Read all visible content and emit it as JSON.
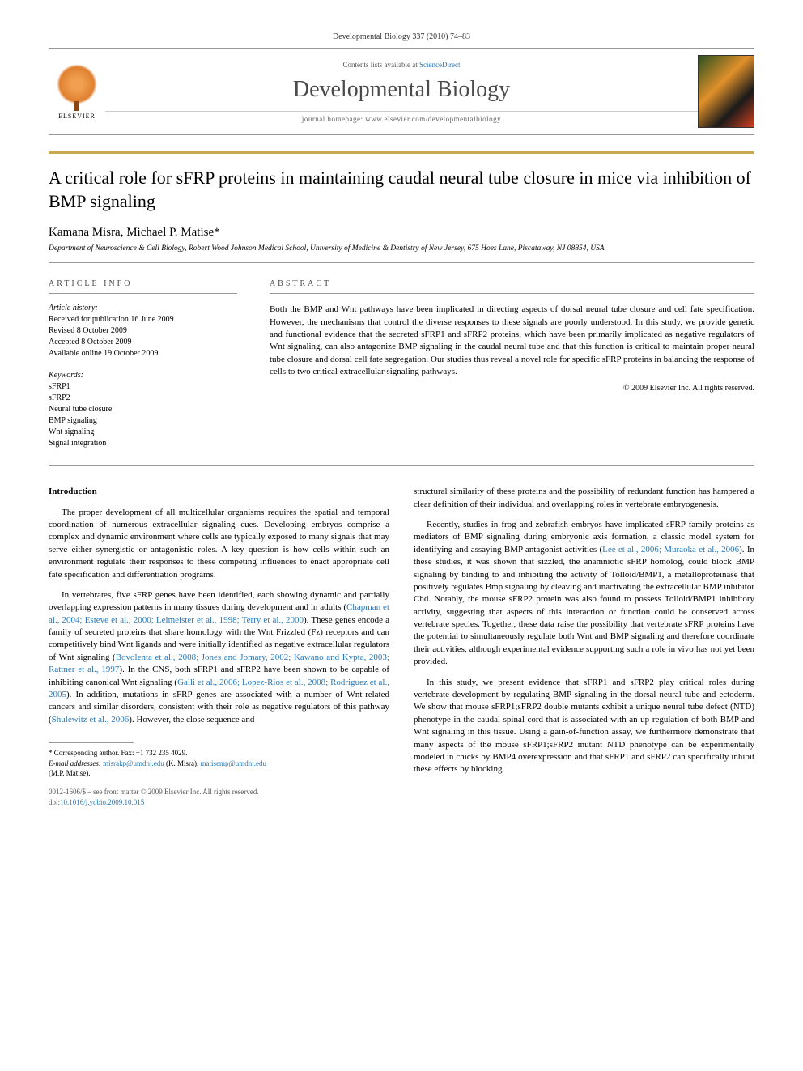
{
  "header": {
    "journal_issue": "Developmental Biology 337 (2010) 74–83",
    "contents_prefix": "Contents lists available at ",
    "contents_link": "ScienceDirect",
    "journal_name": "Developmental Biology",
    "homepage_prefix": "journal homepage: ",
    "homepage_url": "www.elsevier.com/developmentalbiology",
    "publisher_name": "ELSEVIER"
  },
  "article": {
    "title": "A critical role for sFRP proteins in maintaining caudal neural tube closure in mice via inhibition of BMP signaling",
    "authors": "Kamana Misra, Michael P. Matise",
    "corr_mark": "*",
    "affiliation": "Department of Neuroscience & Cell Biology, Robert Wood Johnson Medical School, University of Medicine & Dentistry of New Jersey, 675 Hoes Lane, Piscataway, NJ 08854, USA"
  },
  "info": {
    "section_label": "article info",
    "history_label": "Article history:",
    "history": [
      "Received for publication 16 June 2009",
      "Revised 8 October 2009",
      "Accepted 8 October 2009",
      "Available online 19 October 2009"
    ],
    "keywords_label": "Keywords:",
    "keywords": [
      "sFRP1",
      "sFRP2",
      "Neural tube closure",
      "BMP signaling",
      "Wnt signaling",
      "Signal integration"
    ]
  },
  "abstract": {
    "section_label": "abstract",
    "text": "Both the BMP and Wnt pathways have been implicated in directing aspects of dorsal neural tube closure and cell fate specification. However, the mechanisms that control the diverse responses to these signals are poorly understood. In this study, we provide genetic and functional evidence that the secreted sFRP1 and sFRP2 proteins, which have been primarily implicated as negative regulators of Wnt signaling, can also antagonize BMP signaling in the caudal neural tube and that this function is critical to maintain proper neural tube closure and dorsal cell fate segregation. Our studies thus reveal a novel role for specific sFRP proteins in balancing the response of cells to two critical extracellular signaling pathways.",
    "copyright": "© 2009 Elsevier Inc. All rights reserved."
  },
  "body": {
    "intro_heading": "Introduction",
    "left": {
      "p1": "The proper development of all multicellular organisms requires the spatial and temporal coordination of numerous extracellular signaling cues. Developing embryos comprise a complex and dynamic environment where cells are typically exposed to many signals that may serve either synergistic or antagonistic roles. A key question is how cells within such an environment regulate their responses to these competing influences to enact appropriate cell fate specification and differentiation programs.",
      "p2a": "In vertebrates, five sFRP genes have been identified, each showing dynamic and partially overlapping expression patterns in many tissues during development and in adults (",
      "p2_cite1": "Chapman et al., 2004; Esteve et al., 2000; Leimeister et al., 1998; Terry et al., 2000",
      "p2b": "). These genes encode a family of secreted proteins that share homology with the Wnt Frizzled (Fz) receptors and can competitively bind Wnt ligands and were initially identified as negative extracellular regulators of Wnt signaling (",
      "p2_cite2": "Bovolenta et al., 2008; Jones and Jomary, 2002; Kawano and Kypta, 2003; Rattner et al., 1997",
      "p2c": "). In the CNS, both sFRP1 and sFRP2 have been shown to be capable of inhibiting canonical Wnt signaling (",
      "p2_cite3": "Galli et al., 2006; Lopez-Rios et al., 2008; Rodriguez et al., 2005",
      "p2d": "). In addition, mutations in sFRP genes are associated with a number of Wnt-related cancers and similar disorders, consistent with their role as negative regulators of this pathway (",
      "p2_cite4": "Shulewitz et al., 2006",
      "p2e": "). However, the close sequence and"
    },
    "right": {
      "p1": "structural similarity of these proteins and the possibility of redundant function has hampered a clear definition of their individual and overlapping roles in vertebrate embryogenesis.",
      "p2a": "Recently, studies in frog and zebrafish embryos have implicated sFRP family proteins as mediators of BMP signaling during embryonic axis formation, a classic model system for identifying and assaying BMP antagonist activities (",
      "p2_cite1": "Lee et al., 2006; Muraoka et al., 2006",
      "p2b": "). In these studies, it was shown that sizzled, the anamniotic sFRP homolog, could block BMP signaling by binding to and inhibiting the activity of Tolloid/BMP1, a metalloproteinase that positively regulates Bmp signaling by cleaving and inactivating the extracellular BMP inhibitor Chd. Notably, the mouse sFRP2 protein was also found to possess Tolloid/BMP1 inhibitory activity, suggesting that aspects of this interaction or function could be conserved across vertebrate species. Together, these data raise the possibility that vertebrate sFRP proteins have the potential to simultaneously regulate both Wnt and BMP signaling and therefore coordinate their activities, although experimental evidence supporting such a role in vivo has not yet been provided.",
      "p3": "In this study, we present evidence that sFRP1 and sFRP2 play critical roles during vertebrate development by regulating BMP signaling in the dorsal neural tube and ectoderm. We show that mouse sFRP1;sFRP2 double mutants exhibit a unique neural tube defect (NTD) phenotype in the caudal spinal cord that is associated with an up-regulation of both BMP and Wnt signaling in this tissue. Using a gain-of-function assay, we furthermore demonstrate that many aspects of the mouse sFRP1;sFRP2 mutant NTD phenotype can be experimentally modeled in chicks by BMP4 overexpression and that sFRP1 and sFRP2 can specifically inhibit these effects by blocking"
    }
  },
  "footnotes": {
    "corr": "* Corresponding author. Fax: +1 732 235 4029.",
    "email_label": "E-mail addresses: ",
    "email1": "misrakp@umdnj.edu",
    "email1_who": " (K. Misra), ",
    "email2": "matisemp@umdnj.edu",
    "email2_who": " (M.P. Matise)."
  },
  "doi": {
    "line1": "0012-1606/$ – see front matter © 2009 Elsevier Inc. All rights reserved.",
    "prefix": "doi:",
    "value": "10.1016/j.ydbio.2009.10.015"
  },
  "colors": {
    "gold_rule": "#c9a84f",
    "link": "#2878b8",
    "text": "#000000",
    "border": "#999999"
  },
  "typography": {
    "body_fontsize_pt": 11,
    "title_fontsize_pt": 22,
    "journal_fontsize_pt": 28,
    "small_fontsize_pt": 9
  }
}
